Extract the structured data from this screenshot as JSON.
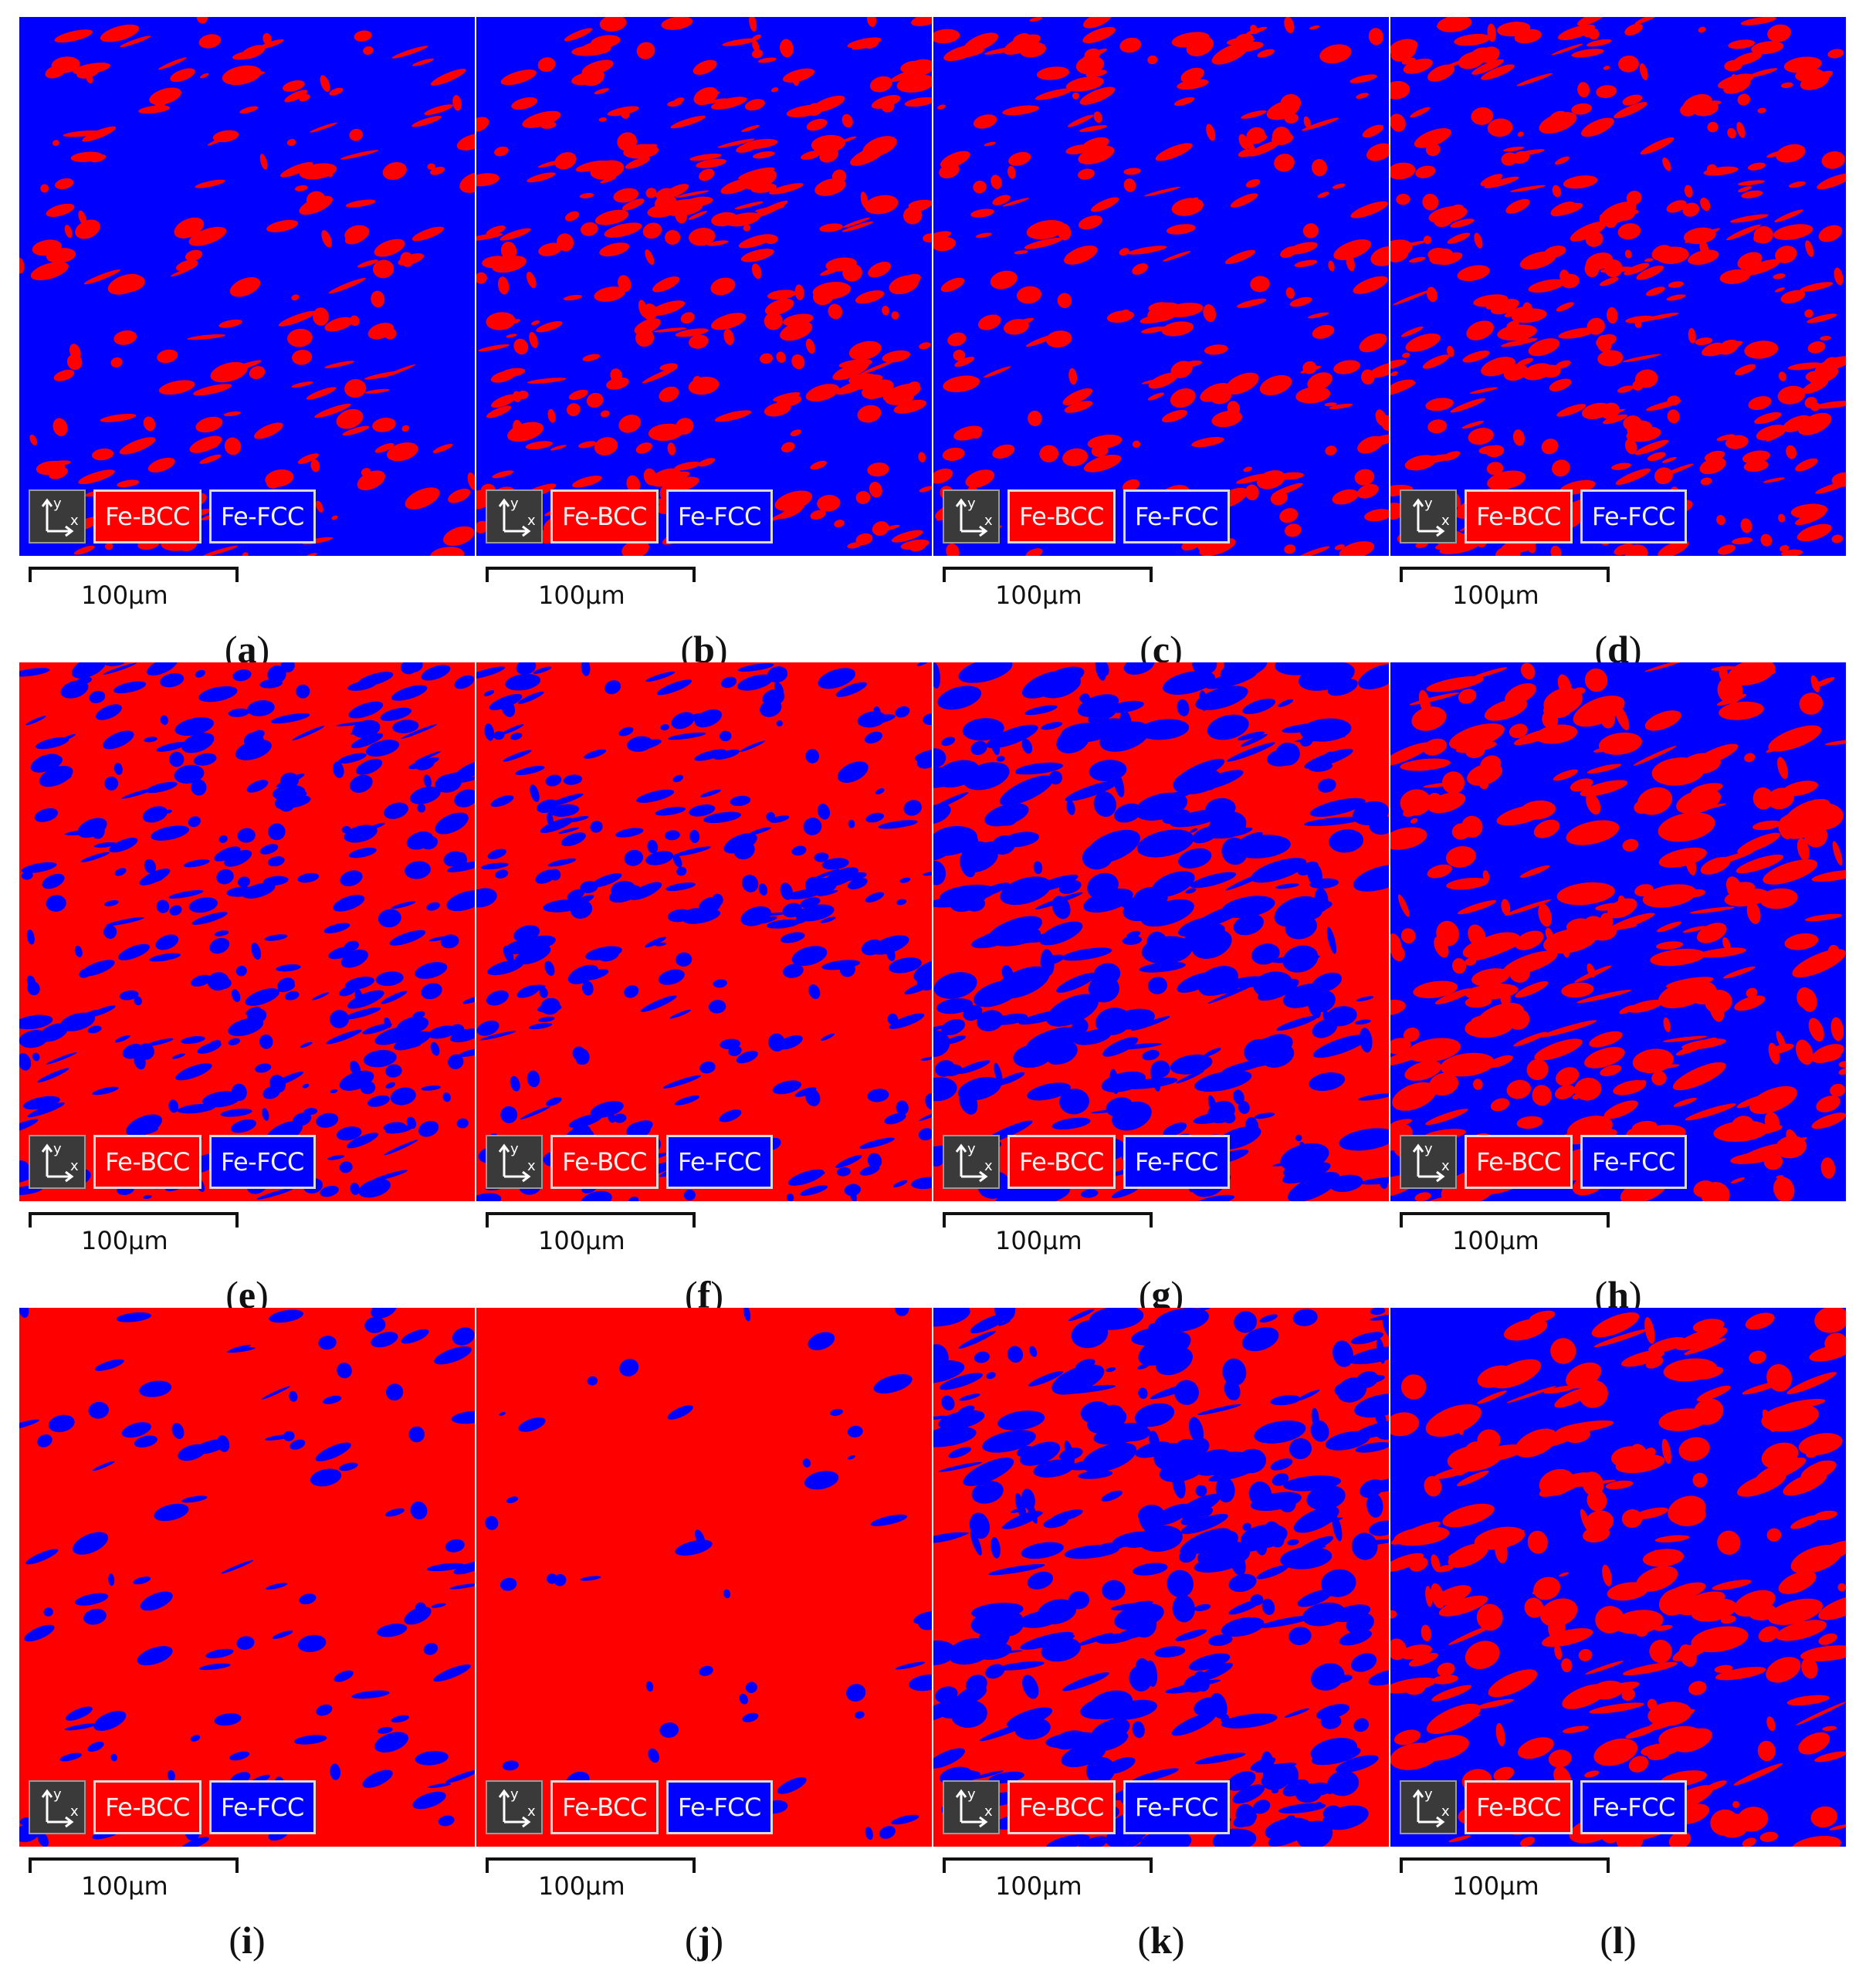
{
  "colors": {
    "bcc": "#ff0000",
    "fcc": "#0000ff"
  },
  "legend": {
    "bcc_label": "Fe-BCC",
    "fcc_label": "Fe-FCC",
    "icon": "xy-axes-icon",
    "axis_x": "x",
    "axis_y": "y"
  },
  "scale_label": "100μm",
  "panels": [
    {
      "letter": "a",
      "bcc_fraction": 0.13
    },
    {
      "letter": "b",
      "bcc_fraction": 0.22
    },
    {
      "letter": "c",
      "bcc_fraction": 0.17
    },
    {
      "letter": "d",
      "bcc_fraction": 0.25
    },
    {
      "letter": "e",
      "bcc_fraction": 0.78
    },
    {
      "letter": "f",
      "bcc_fraction": 0.82
    },
    {
      "letter": "g",
      "bcc_fraction": 0.52
    },
    {
      "letter": "h",
      "bcc_fraction": 0.38
    },
    {
      "letter": "i",
      "bcc_fraction": 0.92
    },
    {
      "letter": "j",
      "bcc_fraction": 0.97
    },
    {
      "letter": "k",
      "bcc_fraction": 0.55
    },
    {
      "letter": "l",
      "bcc_fraction": 0.35
    }
  ]
}
